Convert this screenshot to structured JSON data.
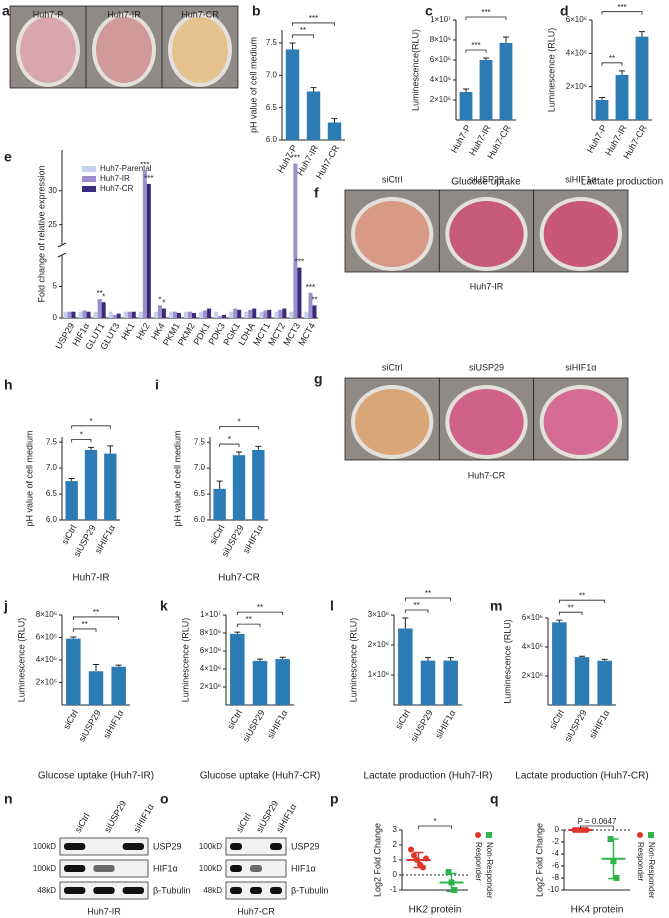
{
  "panels": {
    "a": {
      "letter": "a",
      "labels": [
        "Huh7-P",
        "Huh7-IR",
        "Huh7-CR"
      ],
      "colors": [
        "#d9a6ad",
        "#cf9a97",
        "#e6c290"
      ]
    },
    "f": {
      "letter": "f",
      "labels": [
        "siCtrl",
        "siUSP29",
        "siHIF1α"
      ],
      "caption": "Huh7-IR",
      "colors": [
        "#d89a85",
        "#c75a7a",
        "#c9577a"
      ]
    },
    "g": {
      "letter": "g",
      "labels": [
        "siCtrl",
        "siUSP29",
        "siHIF1α"
      ],
      "caption": "Huh7-CR",
      "colors": [
        "#d8a677",
        "#d0628a",
        "#d46c93"
      ]
    },
    "n": {
      "letter": "n",
      "lanes": [
        "siCtrl",
        "siUSP29",
        "siHIF1α"
      ],
      "rows": [
        {
          "marker": "100kD",
          "protein": "USP29"
        },
        {
          "marker": "100kD",
          "protein": "HIF1α"
        },
        {
          "marker": "48kD",
          "protein": "β-Tubulin"
        }
      ],
      "caption": "Huh7-IR"
    },
    "o": {
      "letter": "o",
      "lanes": [
        "siCtrl",
        "siUSP29",
        "siHIF1α"
      ],
      "rows": [
        {
          "marker": "100kD",
          "protein": "USP29"
        },
        {
          "marker": "100kD",
          "protein": "HIF1α"
        },
        {
          "marker": "48kD",
          "protein": "β-Tubulin"
        }
      ],
      "caption": "Huh7-CR"
    }
  },
  "chart_data": [
    {
      "type": "bar",
      "panel": "b",
      "ylabel": "pH value of cell medium",
      "categories": [
        "Huh7-P",
        "Huh7-IR",
        "Huh7-CR"
      ],
      "values": [
        7.4,
        6.75,
        6.27
      ],
      "errors": [
        0.1,
        0.06,
        0.06
      ],
      "color": "#2b7bb5",
      "ylim": [
        6.0,
        7.7
      ],
      "yticks": [
        {
          "value": 6,
          "label": "6.0"
        },
        {
          "value": 6.5,
          "label": "6.5"
        },
        {
          "value": 7,
          "label": "7.0"
        },
        {
          "value": 7.5,
          "label": "7.5"
        }
      ],
      "brackets": [
        {
          "from": 0,
          "to": 1,
          "text": "**"
        },
        {
          "from": 0,
          "to": 2,
          "text": "***"
        }
      ]
    },
    {
      "type": "bar",
      "panel": "c",
      "ylabel": "Luminescence(RLU)",
      "xlabel": "Glucose uptake",
      "categories": [
        "Huh7-P",
        "Huh7-IR",
        "Huh7-CR"
      ],
      "values": [
        2800000,
        6000000,
        7700000
      ],
      "errors": [
        300000,
        200000,
        600000
      ],
      "color": "#2b7bb5",
      "ylim": [
        0,
        10000000
      ],
      "yticks": [
        {
          "value": 2000000,
          "label": "2×10⁶"
        },
        {
          "value": 4000000,
          "label": "4×10⁶"
        },
        {
          "value": 6000000,
          "label": "6×10⁶"
        },
        {
          "value": 8000000,
          "label": "8×10⁶"
        },
        {
          "value": 10000000,
          "label": "1×10⁷"
        }
      ],
      "brackets": [
        {
          "from": 0,
          "to": 1,
          "text": "***"
        },
        {
          "from": 0,
          "to": 2,
          "text": "***"
        }
      ]
    },
    {
      "type": "bar",
      "panel": "d",
      "ylabel": "Luminescence (RLU)",
      "xlabel": "Lactate production",
      "categories": [
        "Huh7-P",
        "Huh7-IR",
        "Huh7-CR"
      ],
      "values": [
        1200000,
        2700000,
        5000000
      ],
      "errors": [
        150000,
        250000,
        300000
      ],
      "color": "#2b7bb5",
      "ylim": [
        0,
        6000000
      ],
      "yticks": [
        {
          "value": 2000000,
          "label": "2×10⁶"
        },
        {
          "value": 4000000,
          "label": "4×10⁶"
        },
        {
          "value": 6000000,
          "label": "6×10⁶"
        }
      ],
      "brackets": [
        {
          "from": 0,
          "to": 1,
          "text": "**"
        },
        {
          "from": 0,
          "to": 2,
          "text": "***"
        }
      ]
    },
    {
      "type": "grouped-bar",
      "panel": "e",
      "ylabel": "Fold change of relative expression",
      "categories": [
        "USP29",
        "HIF1α",
        "GLUT1",
        "GLUT3",
        "HK1",
        "HK2",
        "HK4",
        "PKM1",
        "PKM2",
        "PDK1",
        "PDK3",
        "PGK1",
        "LDHA",
        "MCT1",
        "MCT2",
        "MCT3",
        "MCT4"
      ],
      "series": [
        {
          "name": "Huh7-Parental",
          "color": "#c5d0ee",
          "values": [
            1,
            1,
            1,
            1,
            1,
            1,
            1,
            1,
            1,
            1,
            1,
            1,
            1,
            1,
            1,
            1,
            1
          ]
        },
        {
          "name": "Huh7-IR",
          "color": "#9d8fcc",
          "values": [
            1,
            1.2,
            3,
            0.5,
            1,
            33,
            2,
            1,
            1,
            1.2,
            0.3,
            1.5,
            1.3,
            1.2,
            1.3,
            34,
            4
          ]
        },
        {
          "name": "Huh7-CR",
          "color": "#3a2a7c",
          "values": [
            1,
            1,
            2.5,
            0.7,
            1,
            31,
            1.5,
            0.8,
            0.8,
            1.5,
            0.5,
            1.3,
            1.5,
            1.3,
            1.5,
            8,
            2
          ]
        }
      ],
      "ylim": [
        0,
        36
      ],
      "ybreak": [
        10,
        22
      ],
      "yticks": [
        0,
        5,
        25,
        30
      ],
      "annotations": [
        {
          "at": [
            2,
            1
          ],
          "text": "**"
        },
        {
          "at": [
            2,
            2
          ],
          "text": "*"
        },
        {
          "at": [
            5,
            1
          ],
          "text": "***"
        },
        {
          "at": [
            5,
            2
          ],
          "text": "***"
        },
        {
          "at": [
            6,
            1
          ],
          "text": "*"
        },
        {
          "at": [
            6,
            2
          ],
          "text": "*"
        },
        {
          "at": [
            15,
            1
          ],
          "text": "***"
        },
        {
          "at": [
            15,
            2
          ],
          "text": "***"
        },
        {
          "at": [
            16,
            1
          ],
          "text": "***"
        },
        {
          "at": [
            16,
            2
          ],
          "text": "**"
        }
      ]
    },
    {
      "type": "bar",
      "panel": "h",
      "ylabel": "pH value of cell medium",
      "xlabel": "Huh7-IR",
      "categories": [
        "siCtrl",
        "siUSP29",
        "siHIF1α"
      ],
      "values": [
        6.75,
        7.35,
        7.28
      ],
      "errors": [
        0.05,
        0.05,
        0.15
      ],
      "color": "#2b7bb5",
      "ylim": [
        6.0,
        7.6
      ],
      "yticks": [
        {
          "value": 6,
          "label": "6.0"
        },
        {
          "value": 6.5,
          "label": "6.5"
        },
        {
          "value": 7,
          "label": "7.0"
        },
        {
          "value": 7.5,
          "label": "7.5"
        }
      ],
      "brackets": [
        {
          "from": 0,
          "to": 1,
          "text": "*"
        },
        {
          "from": 0,
          "to": 2,
          "text": "*"
        }
      ]
    },
    {
      "type": "bar",
      "panel": "i",
      "ylabel": "pH value of cell medium",
      "xlabel": "Huh7-CR",
      "categories": [
        "siCtrl",
        "siUSP29",
        "siHIF1α"
      ],
      "values": [
        6.6,
        7.25,
        7.35
      ],
      "errors": [
        0.15,
        0.06,
        0.07
      ],
      "color": "#2b7bb5",
      "ylim": [
        6.0,
        7.6
      ],
      "yticks": [
        {
          "value": 6,
          "label": "6.0"
        },
        {
          "value": 6.5,
          "label": "6.5"
        },
        {
          "value": 7,
          "label": "7.0"
        },
        {
          "value": 7.5,
          "label": "7.5"
        }
      ],
      "brackets": [
        {
          "from": 0,
          "to": 1,
          "text": "*"
        },
        {
          "from": 0,
          "to": 2,
          "text": "*"
        }
      ]
    },
    {
      "type": "bar",
      "panel": "j",
      "ylabel": "Luminescence (RLU)",
      "xlabel": "Glucose uptake (Huh7-IR)",
      "categories": [
        "siCtrl",
        "siUSP29",
        "siHIF1α"
      ],
      "values": [
        5900000,
        3000000,
        3400000
      ],
      "errors": [
        150000,
        600000,
        150000
      ],
      "color": "#2b7bb5",
      "ylim": [
        0,
        8000000
      ],
      "yticks": [
        {
          "value": 2000000,
          "label": "2×10⁶"
        },
        {
          "value": 4000000,
          "label": "4×10⁶"
        },
        {
          "value": 6000000,
          "label": "6×10⁶"
        },
        {
          "value": 8000000,
          "label": "8×10⁶"
        }
      ],
      "brackets": [
        {
          "from": 0,
          "to": 1,
          "text": "**"
        },
        {
          "from": 0,
          "to": 2,
          "text": "**"
        }
      ]
    },
    {
      "type": "bar",
      "panel": "k",
      "ylabel": "Luminescence (RLU)",
      "xlabel": "Glucose uptake (Huh7-CR)",
      "categories": [
        "siCtrl",
        "siUSP29",
        "siHIF1α"
      ],
      "values": [
        7900000,
        4900000,
        5100000
      ],
      "errors": [
        200000,
        200000,
        200000
      ],
      "color": "#2b7bb5",
      "ylim": [
        0,
        10000000
      ],
      "yticks": [
        {
          "value": 2000000,
          "label": "2×10⁶"
        },
        {
          "value": 4000000,
          "label": "4×10⁶"
        },
        {
          "value": 6000000,
          "label": "6×10⁶"
        },
        {
          "value": 8000000,
          "label": "8×10⁶"
        },
        {
          "value": 10000000,
          "label": "1×10⁷"
        }
      ],
      "brackets": [
        {
          "from": 0,
          "to": 1,
          "text": "**"
        },
        {
          "from": 0,
          "to": 2,
          "text": "**"
        }
      ]
    },
    {
      "type": "bar",
      "panel": "l",
      "ylabel": "Luminescence (RLU)",
      "xlabel": "Lactate production (Huh7-IR)",
      "categories": [
        "siCtrl",
        "siUSP29",
        "siHIF1α"
      ],
      "values": [
        2550000,
        1480000,
        1480000
      ],
      "errors": [
        350000,
        100000,
        100000
      ],
      "color": "#2b7bb5",
      "ylim": [
        0,
        3000000
      ],
      "yticks": [
        {
          "value": 1000000,
          "label": "1×10⁶"
        },
        {
          "value": 2000000,
          "label": "2×10⁶"
        },
        {
          "value": 3000000,
          "label": "3×10⁶"
        }
      ],
      "brackets": [
        {
          "from": 0,
          "to": 1,
          "text": "**"
        },
        {
          "from": 0,
          "to": 2,
          "text": "**"
        }
      ]
    },
    {
      "type": "bar",
      "panel": "m",
      "ylabel": "Luminescence (RLU)",
      "xlabel": "Lactate production (Huh7-CR)",
      "categories": [
        "siCtrl",
        "siUSP29",
        "siHIF1α"
      ],
      "values": [
        5700000,
        3300000,
        3050000
      ],
      "errors": [
        150000,
        60000,
        100000
      ],
      "color": "#2b7bb5",
      "ylim": [
        0,
        6000000
      ],
      "yticks": [
        {
          "value": 2000000,
          "label": "2×10⁶"
        },
        {
          "value": 4000000,
          "label": "4×10⁶"
        },
        {
          "value": 6000000,
          "label": "6×10⁶"
        }
      ],
      "brackets": [
        {
          "from": 0,
          "to": 1,
          "text": "**"
        },
        {
          "from": 0,
          "to": 2,
          "text": "**"
        }
      ]
    },
    {
      "type": "dot",
      "panel": "p",
      "ylabel": "Log2 Fold Change",
      "xlabel": "HK2 protein",
      "series": [
        {
          "name": "Responder",
          "color": "#e0352b",
          "marker": "circle",
          "values": [
            1.7,
            1.3,
            1.0,
            0.7,
            0.5,
            1.1
          ],
          "mean": 1.0,
          "sd": 0.5
        },
        {
          "name": "Non-Responder",
          "color": "#2fb34a",
          "marker": "square",
          "values": [
            0.2,
            -0.5,
            -1.0
          ],
          "mean": -0.5,
          "sd": 0.6
        }
      ],
      "ylim": [
        -1,
        3
      ],
      "yticks": [
        -1,
        0,
        1,
        2,
        3
      ],
      "refline": 0,
      "brackets": [
        {
          "from": 0,
          "to": 1,
          "text": "*"
        }
      ]
    },
    {
      "type": "dot",
      "panel": "q",
      "ylabel": "Log2 Fold Change",
      "xlabel": "HK4 protein",
      "series": [
        {
          "name": "Responder",
          "color": "#e0352b",
          "marker": "circle",
          "values": [
            0,
            0,
            0,
            0,
            0
          ],
          "mean": 0,
          "sd": 0
        },
        {
          "name": "Non-Responder",
          "color": "#2fb34a",
          "marker": "square",
          "values": [
            -1.5,
            -5.2,
            -8.0
          ],
          "mean": -4.8,
          "sd": 3.3
        }
      ],
      "ylim": [
        -10,
        0
      ],
      "yticks": [
        0,
        -2,
        -4,
        -6,
        -8,
        -10
      ],
      "refline": 0,
      "brackets": [
        {
          "from": 0,
          "to": 1,
          "text": "P = 0.0647"
        }
      ]
    }
  ]
}
